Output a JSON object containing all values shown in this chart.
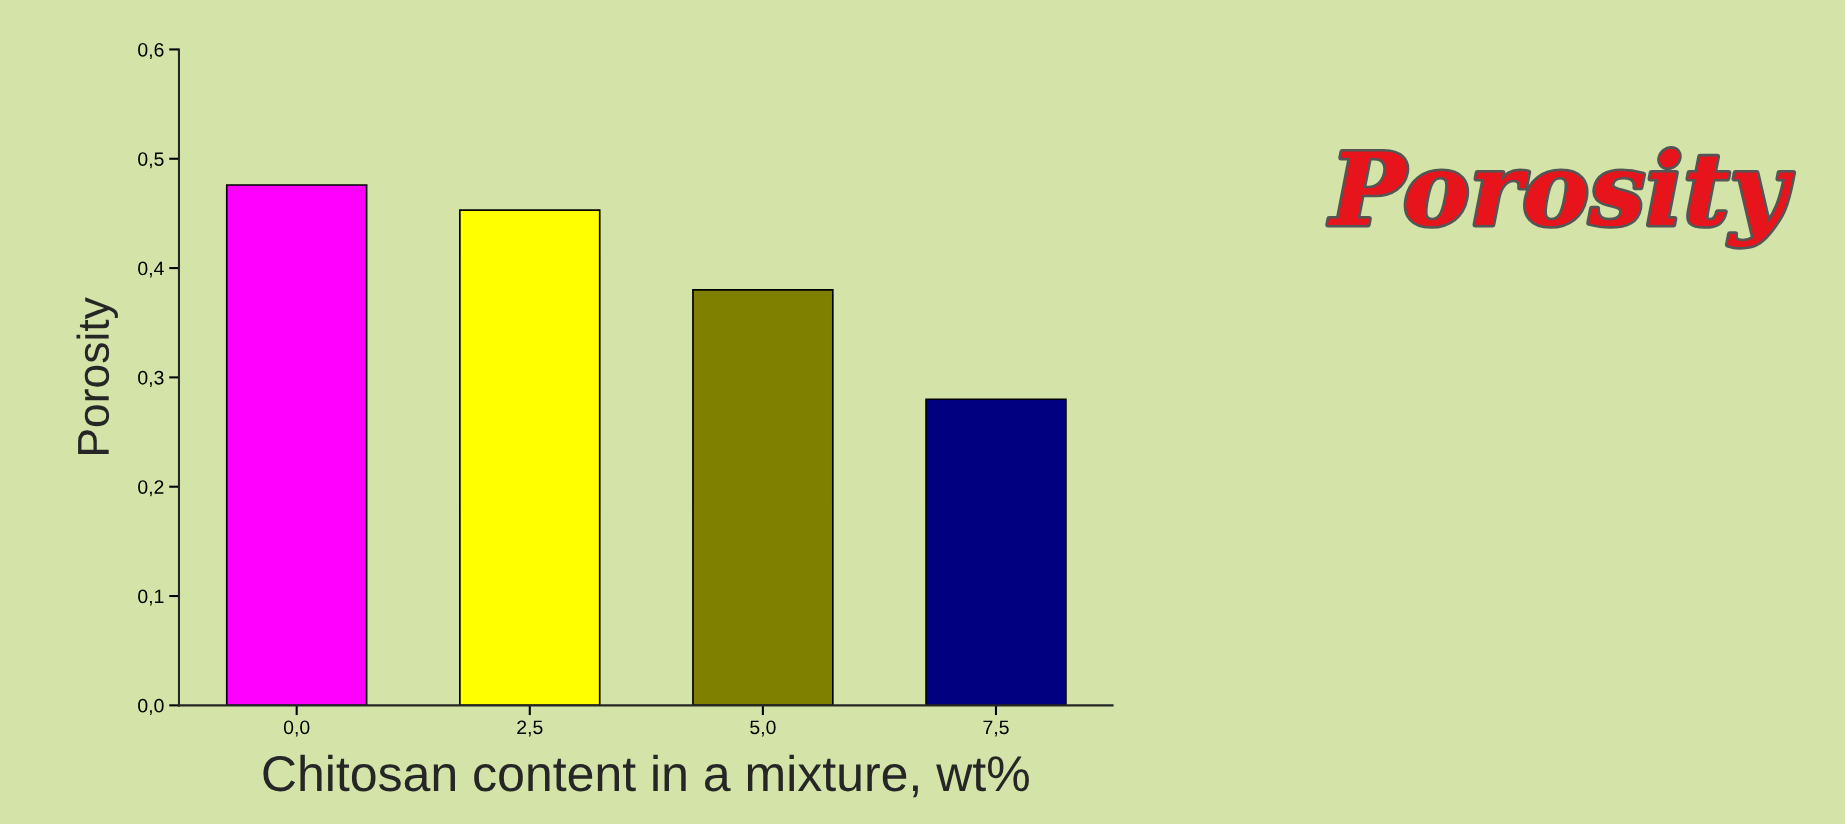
{
  "chart_data": {
    "type": "bar",
    "title": "Porosity",
    "xlabel": "Chitosan content in a mixture, wt%",
    "ylabel": "Porosity",
    "categories": [
      "0,0",
      "2,5",
      "5,0",
      "7,5"
    ],
    "values": [
      0.476,
      0.453,
      0.38,
      0.28
    ],
    "colors": [
      "#ff00ff",
      "#ffff00",
      "#808000",
      "#000080"
    ],
    "ylim": [
      0,
      0.6
    ],
    "yticks": [
      {
        "value": 0,
        "label": "0,0"
      },
      {
        "value": 0.1,
        "label": "0,1"
      },
      {
        "value": 0.2,
        "label": "0,2"
      },
      {
        "value": 0.3,
        "label": "0,3"
      },
      {
        "value": 0.4,
        "label": "0,4"
      },
      {
        "value": 0.5,
        "label": "0,5"
      },
      {
        "value": 0.6,
        "label": "0,6"
      }
    ],
    "grid": false,
    "legend": false
  }
}
